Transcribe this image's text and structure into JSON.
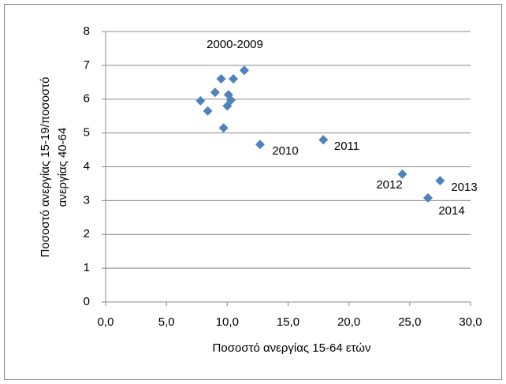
{
  "chart_data": {
    "type": "scatter",
    "x_label": "Ποσοστό ανεργίας 15-64 ετών",
    "y_label": [
      "Ποσοστό ανεργίας 15-19/ποσοστό",
      "ανεργίας 40-64"
    ],
    "series": [
      {
        "name": null,
        "color": "#4f81bd",
        "x": [
          7.8,
          8.4,
          9.0,
          9.5,
          9.7,
          10.0,
          10.1,
          10.3,
          10.5,
          11.4,
          12.7,
          17.9,
          24.4,
          27.5,
          26.5
        ],
        "values": [
          5.95,
          5.65,
          6.2,
          6.6,
          5.15,
          5.8,
          6.13,
          5.97,
          6.6,
          6.85,
          4.66,
          4.8,
          3.78,
          3.59,
          3.08
        ]
      }
    ],
    "annotations": [
      "2000-2009",
      "2010",
      "2011",
      "2012",
      "2013",
      "2014"
    ],
    "xlim": [
      0,
      30
    ],
    "xticks": [
      {
        "value": 0,
        "label": "0,0"
      },
      {
        "value": 5,
        "label": "5,0"
      },
      {
        "value": 10,
        "label": "10,0"
      },
      {
        "value": 15,
        "label": "15,0"
      },
      {
        "value": 20,
        "label": "20,0"
      },
      {
        "value": 25,
        "label": "25,0"
      },
      {
        "value": 30,
        "label": "30,0"
      }
    ],
    "ylim": [
      0,
      8
    ],
    "yticks": [
      0,
      1,
      2,
      3,
      4,
      5,
      6,
      7,
      8
    ],
    "grid": true
  }
}
